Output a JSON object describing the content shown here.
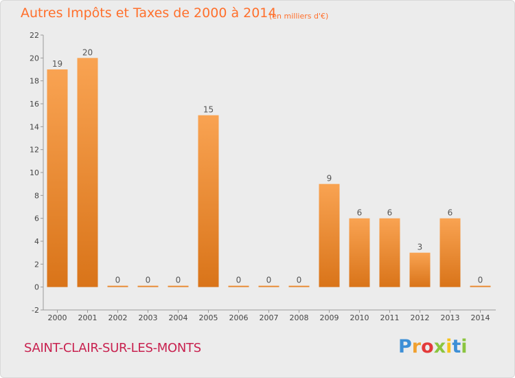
{
  "header": {
    "title": "Autres Impôts et Taxes de 2000 à 2014",
    "unit": "(en milliers d'€)"
  },
  "footer": {
    "commune": "SAINT-CLAIR-SUR-LES-MONTS",
    "logo": [
      "P",
      "r",
      "o",
      "x",
      "i",
      "t",
      "i"
    ]
  },
  "colors": {
    "bar_light": "#f9a352",
    "bar_dark": "#d97419",
    "title": "#ff6f2b",
    "commune": "#c8214f"
  },
  "chart_data": {
    "type": "bar",
    "title": "Autres Impôts et Taxes de 2000 à 2014",
    "subtitle": "(en milliers d'€)",
    "xlabel": "",
    "ylabel": "",
    "categories": [
      "2000",
      "2001",
      "2002",
      "2003",
      "2004",
      "2005",
      "2006",
      "2007",
      "2008",
      "2009",
      "2010",
      "2011",
      "2012",
      "2013",
      "2014"
    ],
    "values": [
      19,
      20,
      0,
      0,
      0,
      15,
      0,
      0,
      0,
      9,
      6,
      6,
      3,
      6,
      0
    ],
    "value_labels": [
      "19",
      "20",
      "0",
      "0",
      "0",
      "15",
      "0",
      "0",
      "0",
      "9",
      "6",
      "6",
      "3",
      "6",
      "0"
    ],
    "ylim": [
      -2,
      22
    ],
    "yticks": [
      -2,
      0,
      2,
      4,
      6,
      8,
      10,
      12,
      14,
      16,
      18,
      20,
      22
    ],
    "grid": false,
    "legend": "none"
  }
}
